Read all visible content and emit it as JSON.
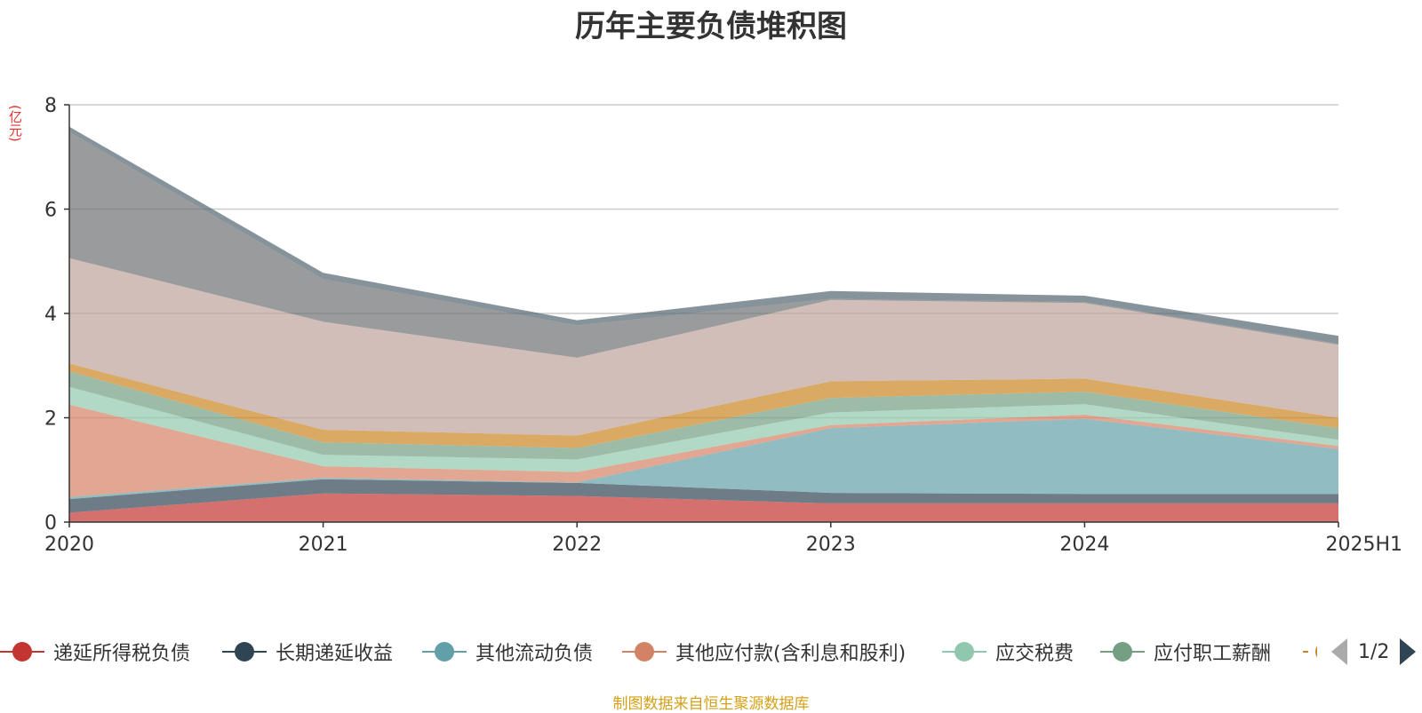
{
  "chart_data": {
    "type": "area",
    "stacked": true,
    "title": "历年主要负债堆积图",
    "ylabel": "(亿元)",
    "ylim": [
      0,
      8
    ],
    "yticks": [
      "0",
      "2",
      "4",
      "6",
      "8"
    ],
    "grid": true,
    "categories": [
      "2020",
      "2021",
      "2022",
      "2023",
      "2024",
      "2025H1"
    ],
    "series": [
      {
        "name": "递延所得税负债",
        "color": "#c23531",
        "values": [
          0.18,
          0.55,
          0.5,
          0.36,
          0.36,
          0.36
        ]
      },
      {
        "name": "长期递延收益",
        "color": "#2f4554",
        "values": [
          0.26,
          0.27,
          0.25,
          0.2,
          0.18,
          0.18
        ]
      },
      {
        "name": "其他流动负债",
        "color": "#61a0a8",
        "values": [
          0.04,
          0.03,
          0.01,
          1.24,
          1.44,
          0.86
        ]
      },
      {
        "name": "其他应付款(含利息和股利)",
        "color": "#d48265",
        "values": [
          1.77,
          0.22,
          0.2,
          0.06,
          0.08,
          0.06
        ]
      },
      {
        "name": "应交税费",
        "color": "#91c7ae",
        "values": [
          0.34,
          0.22,
          0.24,
          0.24,
          0.2,
          0.12
        ]
      },
      {
        "name": "应付职工薪酬",
        "color": "#749f83",
        "values": [
          0.3,
          0.24,
          0.22,
          0.28,
          0.24,
          0.22
        ]
      },
      {
        "name": "",
        "color": "#ca8622",
        "values": [
          0.15,
          0.24,
          0.24,
          0.32,
          0.25,
          0.2
        ]
      },
      {
        "name": "",
        "color": "#bda29a",
        "values": [
          2.02,
          2.07,
          1.49,
          1.56,
          1.45,
          1.4
        ]
      },
      {
        "name": "",
        "color": "#6e7074",
        "values": [
          2.42,
          0.82,
          0.62,
          0.02,
          0.02,
          0.02
        ]
      },
      {
        "name": "",
        "color": "#546570",
        "values": [
          0.1,
          0.12,
          0.1,
          0.15,
          0.12,
          0.15
        ]
      }
    ]
  },
  "legend": {
    "page": "1/2",
    "visible_names": [
      "递延所得税负债",
      "长期递延收益",
      "其他流动负债",
      "其他应付款(含利息和股利)",
      "应交税费",
      "应付职工薪酬"
    ]
  },
  "footer": {
    "source": "制图数据来自恒生聚源数据库"
  },
  "colors": {
    "title": "#333333",
    "unit": "#e8302d",
    "source": "#d4a017",
    "grid": "#cccccc",
    "axis": "#333333"
  }
}
